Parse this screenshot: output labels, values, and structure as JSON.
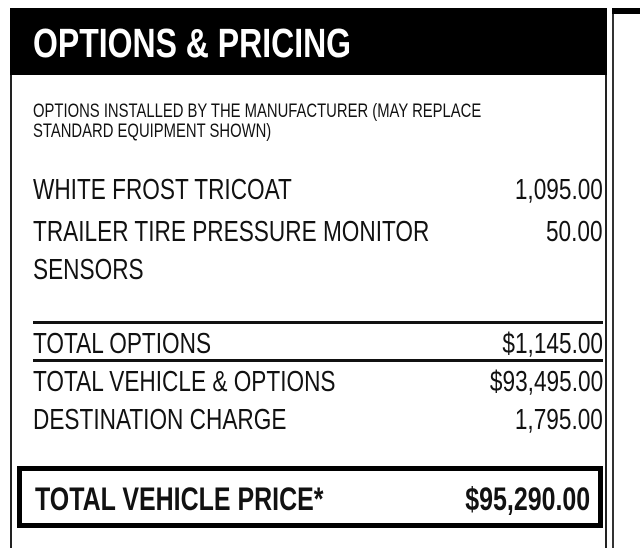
{
  "header": {
    "title": "OPTIONS & PRICING"
  },
  "subtitle": "OPTIONS INSTALLED BY THE MANUFACTURER (MAY REPLACE STANDARD EQUIPMENT SHOWN)",
  "subtitle_lines": [
    "OPTIONS INSTALLED BY THE MANUFACTURER (MAY REPLACE",
    "STANDARD EQUIPMENT SHOWN)"
  ],
  "options": [
    {
      "name": "WHITE FROST TRICOAT",
      "price": "1,095.00"
    },
    {
      "name_lines": [
        "TRAILER TIRE PRESSURE MONITOR",
        "SENSORS"
      ],
      "price": "50.00"
    }
  ],
  "totals": [
    {
      "label": "TOTAL OPTIONS",
      "value": "$1,145.00"
    },
    {
      "label": "TOTAL VEHICLE & OPTIONS",
      "value": "$93,495.00"
    },
    {
      "label": "DESTINATION CHARGE",
      "value": "1,795.00"
    }
  ],
  "grand_total": {
    "label": "TOTAL VEHICLE PRICE*",
    "value": "$95,290.00"
  }
}
